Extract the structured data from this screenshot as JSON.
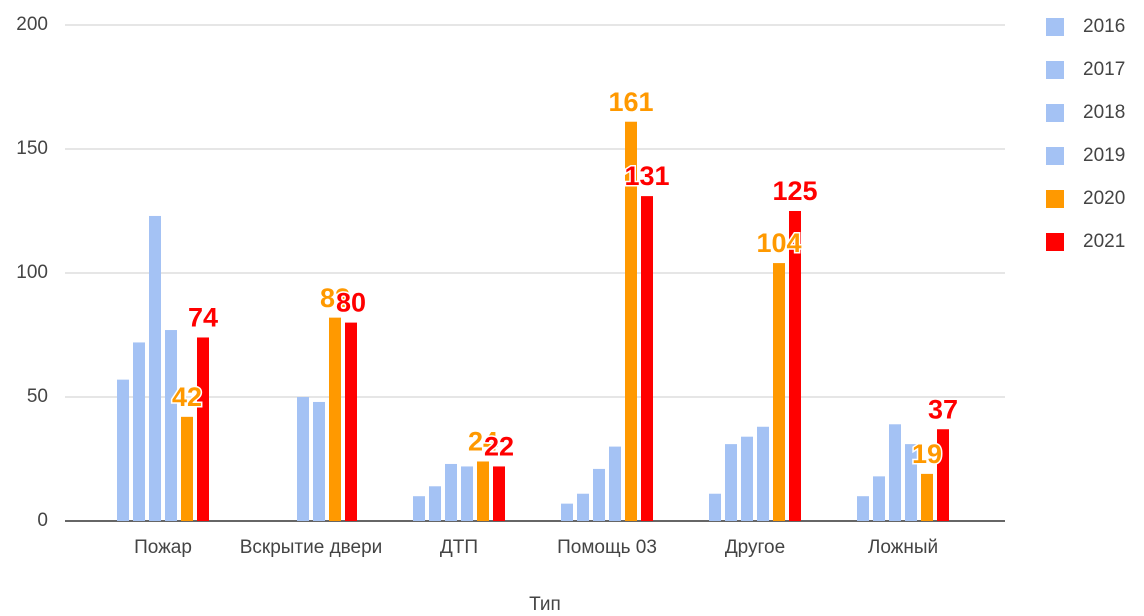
{
  "chart_data": {
    "type": "bar",
    "x_label": "Тип",
    "categories": [
      "Пожар",
      "Вскрытие двери",
      "ДТП",
      "Помощь 03",
      "Другое",
      "Ложный"
    ],
    "series": [
      {
        "name": "2016",
        "color": "#a4c2f4",
        "values": [
          57,
          null,
          10,
          7,
          11,
          10
        ]
      },
      {
        "name": "2017",
        "color": "#a4c2f4",
        "values": [
          72,
          null,
          14,
          11,
          31,
          18
        ]
      },
      {
        "name": "2018",
        "color": "#a4c2f4",
        "values": [
          123,
          50,
          23,
          21,
          34,
          39
        ]
      },
      {
        "name": "2019",
        "color": "#a4c2f4",
        "values": [
          77,
          48,
          22,
          30,
          38,
          31
        ]
      },
      {
        "name": "2020",
        "color": "#ff9900",
        "values": [
          42,
          82,
          24,
          161,
          104,
          19
        ],
        "data_labels": true
      },
      {
        "name": "2021",
        "color": "#ff0000",
        "values": [
          74,
          80,
          22,
          131,
          125,
          37
        ],
        "data_labels": true
      }
    ],
    "ylim": [
      0,
      200
    ],
    "yticks": [
      0,
      50,
      100,
      150,
      200
    ],
    "grid": true,
    "legend": "right"
  }
}
